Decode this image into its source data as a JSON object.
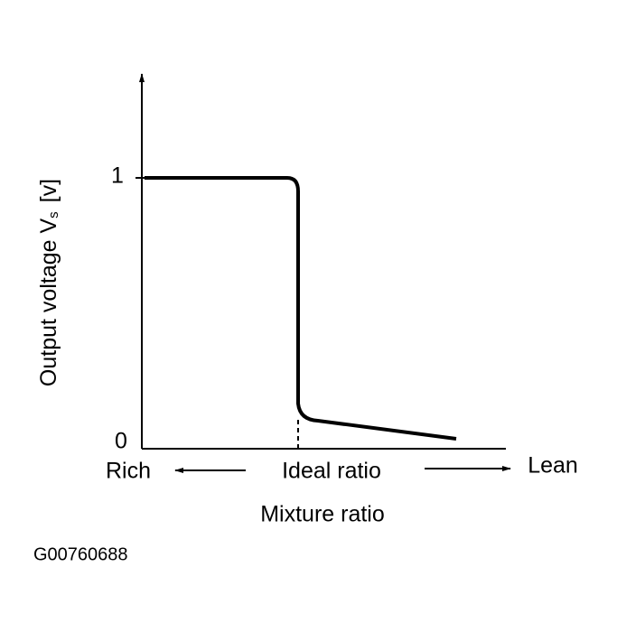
{
  "y_axis": {
    "label": "Output voltage V",
    "subscript": "s",
    "unit": "[v]",
    "ticks": [
      "1",
      "0"
    ]
  },
  "x_axis": {
    "left": "Rich",
    "center": "Ideal ratio",
    "right": "Lean",
    "title": "Mixture ratio"
  },
  "figure_id": "G00760688"
}
